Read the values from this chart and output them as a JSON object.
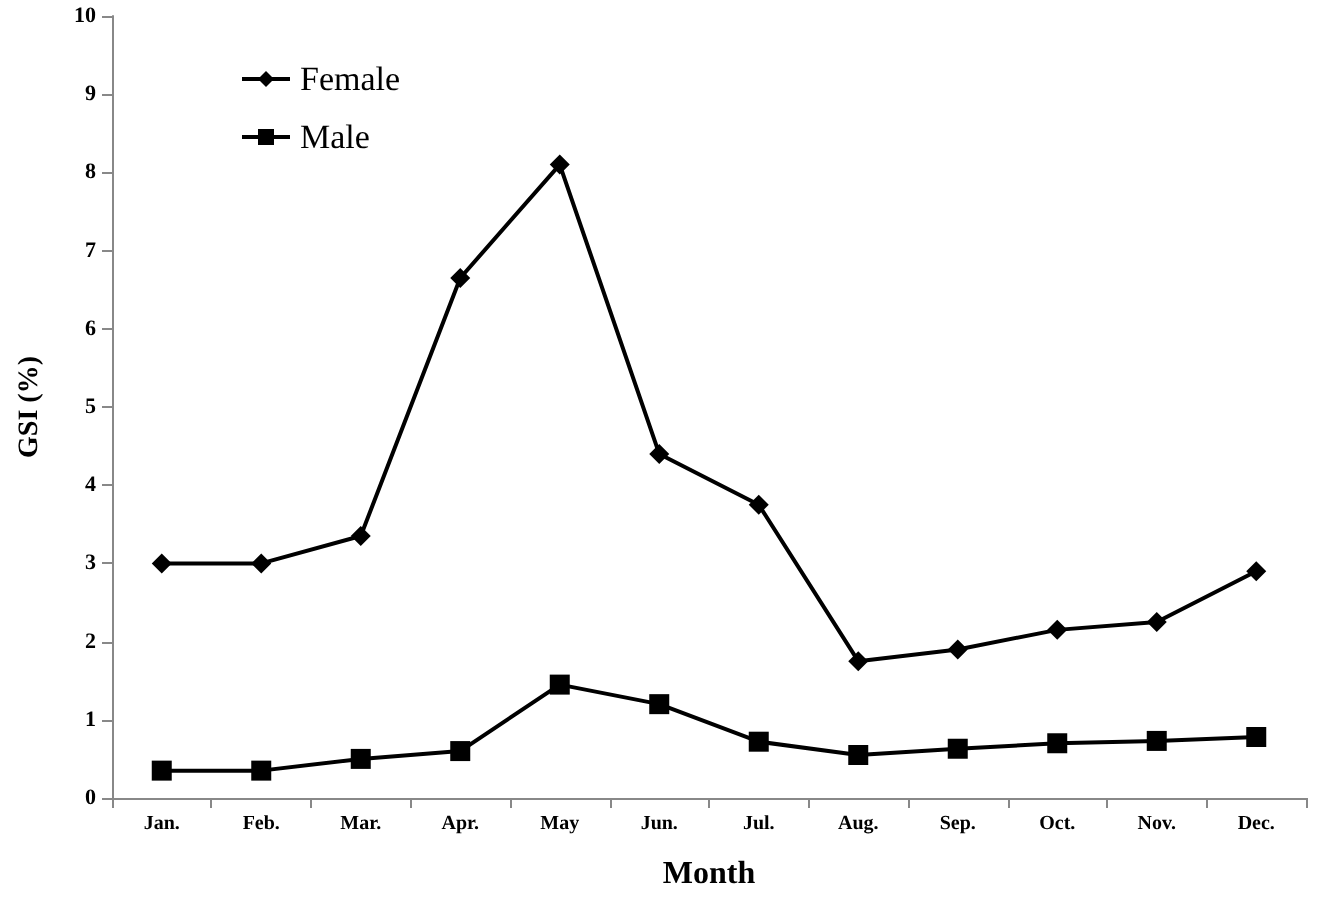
{
  "chart_data": {
    "type": "line",
    "xlabel": "Month",
    "ylabel": "GSI (%)",
    "categories": [
      "Jan.",
      "Feb.",
      "Mar.",
      "Apr.",
      "May",
      "Jun.",
      "Jul.",
      "Aug.",
      "Sep.",
      "Oct.",
      "Nov.",
      "Dec."
    ],
    "series": [
      {
        "name": "Female",
        "color": "#000000",
        "marker": "diamond",
        "values": [
          3.0,
          3.0,
          3.35,
          6.65,
          8.1,
          4.4,
          3.75,
          1.75,
          1.9,
          2.15,
          2.25,
          2.9
        ]
      },
      {
        "name": "Male",
        "color": "#000000",
        "marker": "square",
        "values": [
          0.35,
          0.35,
          0.5,
          0.6,
          1.45,
          1.2,
          0.72,
          0.55,
          0.63,
          0.7,
          0.73,
          0.78
        ]
      }
    ],
    "ylim": [
      0,
      10
    ],
    "yticks": [
      0,
      1,
      2,
      3,
      4,
      5,
      6,
      7,
      8,
      9,
      10
    ],
    "grid": false,
    "legend": "top left",
    "line_style": "solid"
  }
}
